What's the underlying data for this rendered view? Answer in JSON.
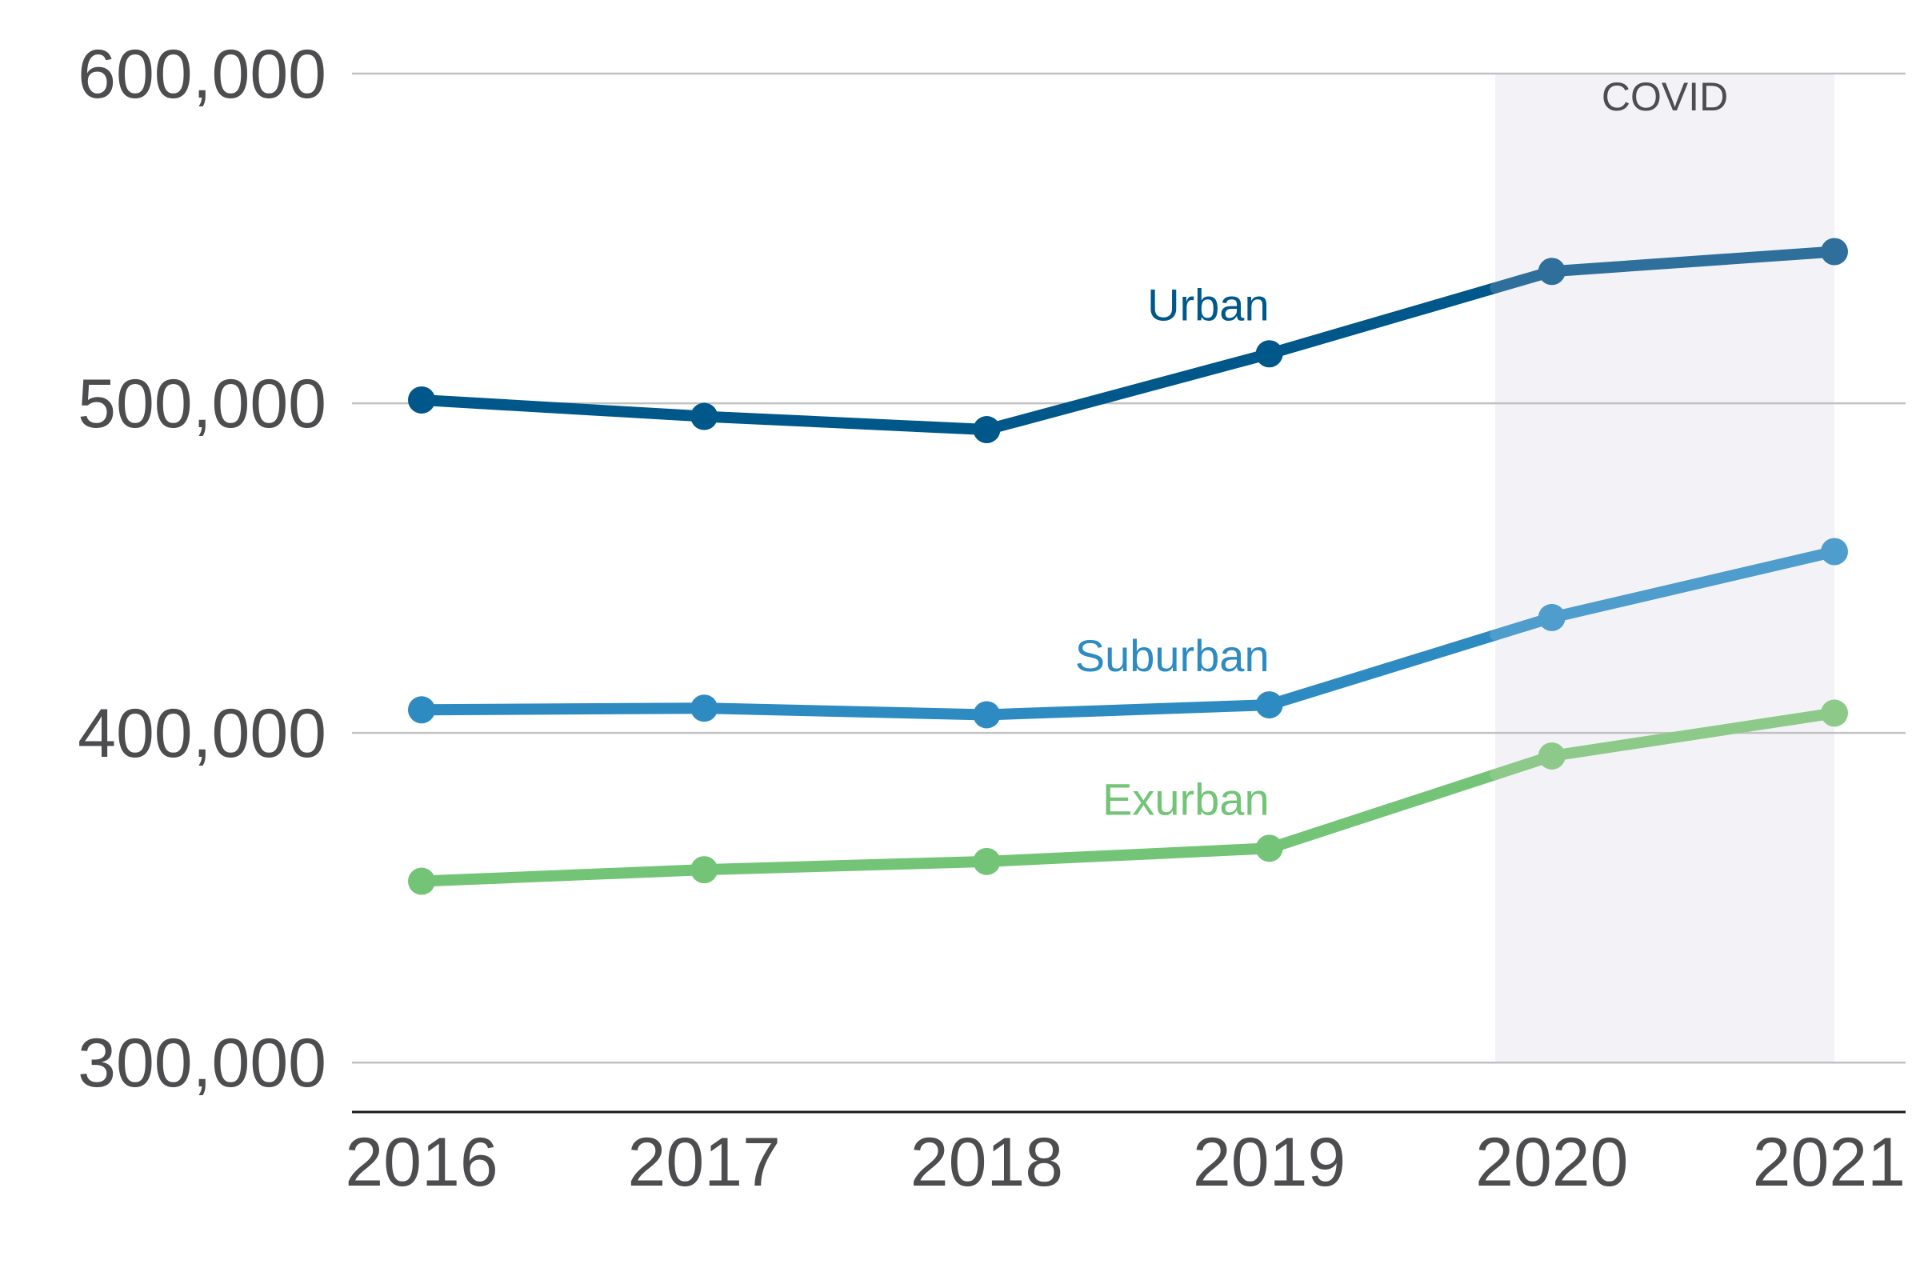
{
  "chart_data": {
    "type": "line",
    "x": [
      "2016",
      "2017",
      "2018",
      "2019",
      "2020",
      "2021"
    ],
    "ylim": [
      285000,
      600000
    ],
    "yticks": [
      300000,
      400000,
      500000,
      600000
    ],
    "ytick_labels": [
      "300,000",
      "400,000",
      "500,000",
      "600,000"
    ],
    "grid": true,
    "series": [
      {
        "name": "Urban",
        "color": "#00578a",
        "covid_color": "#2f6f9b",
        "values": [
          501000,
          496000,
          492000,
          515000,
          540000,
          546000
        ]
      },
      {
        "name": "Suburban",
        "color": "#2e8bc2",
        "covid_color": "#4f9dcc",
        "values": [
          407000,
          407500,
          405500,
          408500,
          435000,
          455000
        ]
      },
      {
        "name": "Exurban",
        "color": "#73c477",
        "covid_color": "#8dca89",
        "values": [
          355000,
          358500,
          361000,
          365000,
          393000,
          406000
        ]
      }
    ],
    "annotations": [
      {
        "label": "COVID",
        "type": "shaded-region",
        "x_start_offset": -0.2,
        "x_end": "2021",
        "color": "#f2f2f7"
      }
    ]
  }
}
